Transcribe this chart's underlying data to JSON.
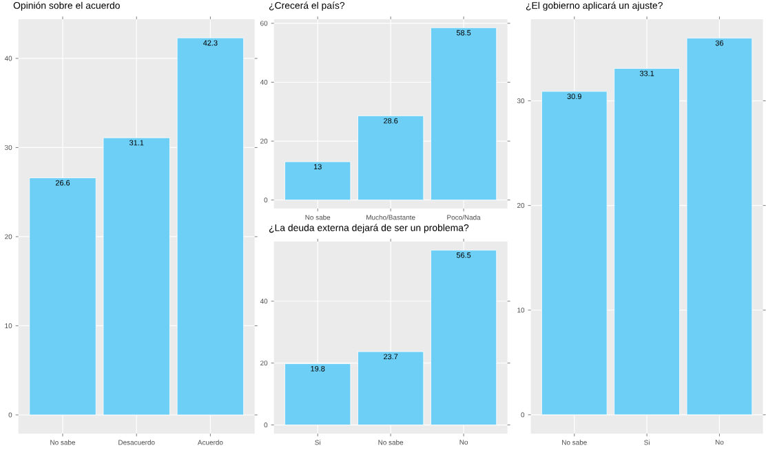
{
  "chart_data": [
    {
      "type": "bar",
      "title": "Opinión sobre el acuerdo",
      "categories": [
        "No sabe",
        "Desacuerdo",
        "Acuerdo"
      ],
      "values": [
        26.6,
        31.1,
        42.3
      ],
      "color": "#6dcff6",
      "ylim": [
        -2.1,
        44.4
      ],
      "yticks": [
        0,
        10,
        20,
        30,
        40
      ],
      "grid": true,
      "data_labels": true
    },
    {
      "type": "bar",
      "title": "¿Crecerá el país?",
      "categories": [
        "No sabe",
        "Mucho/Bastante",
        "Poco/Nada"
      ],
      "values": [
        13,
        28.6,
        58.5
      ],
      "color": "#6dcff6",
      "ylim": [
        -2.9,
        61.4
      ],
      "yticks": [
        0,
        20,
        40,
        60
      ],
      "grid": true,
      "data_labels": true
    },
    {
      "type": "bar",
      "title": "¿La deuda externa dejará de ser un problema?",
      "categories": [
        "Si",
        "No sabe",
        "No"
      ],
      "values": [
        19.8,
        23.7,
        56.5
      ],
      "color": "#6dcff6",
      "ylim": [
        -2.8,
        59.3
      ],
      "yticks": [
        0,
        20,
        40
      ],
      "grid": true,
      "data_labels": true
    },
    {
      "type": "bar",
      "title": "¿El gobierno aplicará un ajuste?",
      "categories": [
        "No sabe",
        "Si",
        "No"
      ],
      "values": [
        30.9,
        33.1,
        36
      ],
      "color": "#6dcff6",
      "ylim": [
        -1.8,
        37.8
      ],
      "yticks": [
        0,
        10,
        20,
        30
      ],
      "grid": true,
      "data_labels": true
    }
  ]
}
